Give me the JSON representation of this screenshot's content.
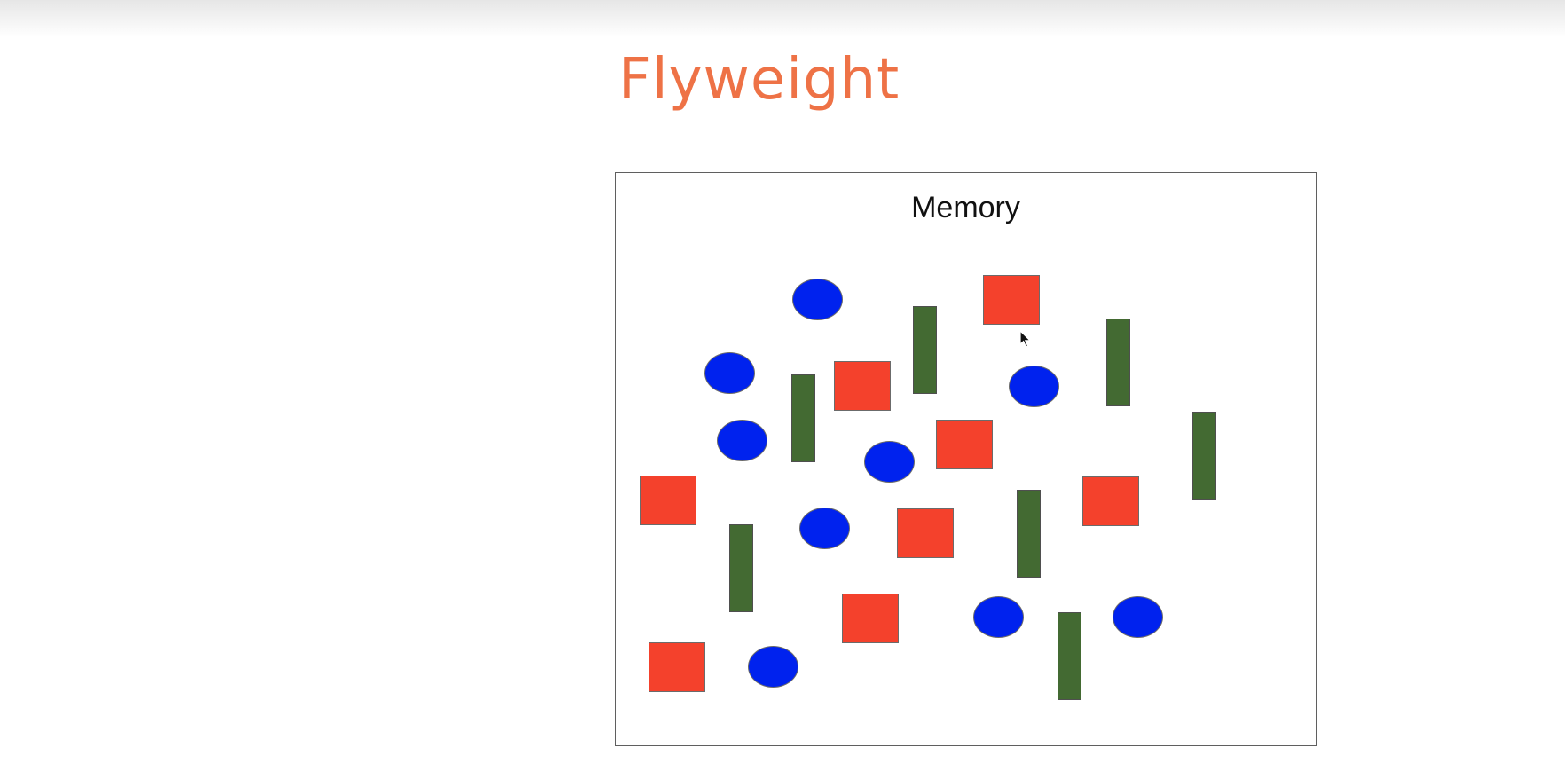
{
  "slide": {
    "title": "Flyweight",
    "title_color": "#ee7246"
  },
  "memory": {
    "label": "Memory",
    "colors": {
      "circle": "#0022ee",
      "square": "#f4412c",
      "bar": "#436a32"
    }
  }
}
